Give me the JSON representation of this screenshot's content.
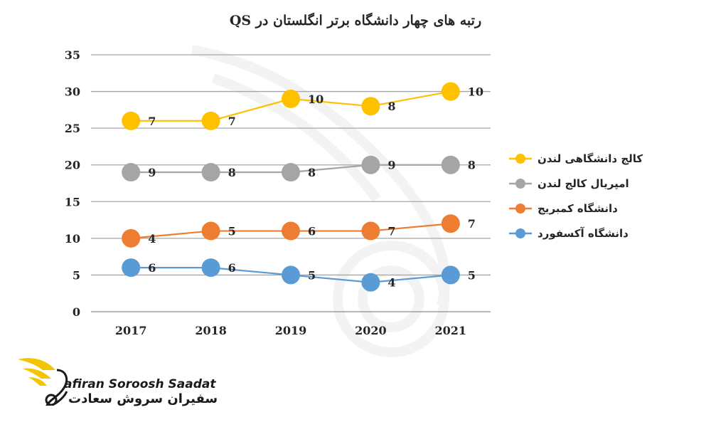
{
  "chart_data": {
    "type": "line",
    "title": "رتبه های چهار دانشگاه برتر انگلستان در QS",
    "xlabel": "",
    "ylabel": "",
    "categories": [
      "2017",
      "2018",
      "2019",
      "2020",
      "2021"
    ],
    "ylim": [
      0,
      35
    ],
    "yticks": [
      "0",
      "5",
      "10",
      "15",
      "20",
      "25",
      "30",
      "35"
    ],
    "grid": true,
    "legend_position": "right",
    "series": [
      {
        "name": "کالج دانشگاهی لندن",
        "color": "#FFC000",
        "values": [
          26,
          26,
          29,
          28,
          30
        ],
        "labels": [
          "7",
          "7",
          "10",
          "8",
          "10"
        ]
      },
      {
        "name": "امپریال کالج لندن",
        "color": "#A5A5A5",
        "values": [
          19,
          19,
          19,
          20,
          20
        ],
        "labels": [
          "9",
          "8",
          "8",
          "9",
          "8"
        ]
      },
      {
        "name": "دانشگاه کمبریج",
        "color": "#ED7D31",
        "values": [
          10,
          11,
          11,
          11,
          12
        ],
        "labels": [
          "4",
          "5",
          "6",
          "7",
          "7"
        ]
      },
      {
        "name": "دانشگاه آکسفورد",
        "color": "#5B9BD5",
        "values": [
          6,
          6,
          5,
          4,
          5
        ],
        "labels": [
          "6",
          "6",
          "5",
          "4",
          "5"
        ]
      }
    ]
  },
  "logo": {
    "name_en": "afiran Soroosh Saadat",
    "name_fa": "سفیران سروش سعادت",
    "accent_color": "#F5C400"
  }
}
